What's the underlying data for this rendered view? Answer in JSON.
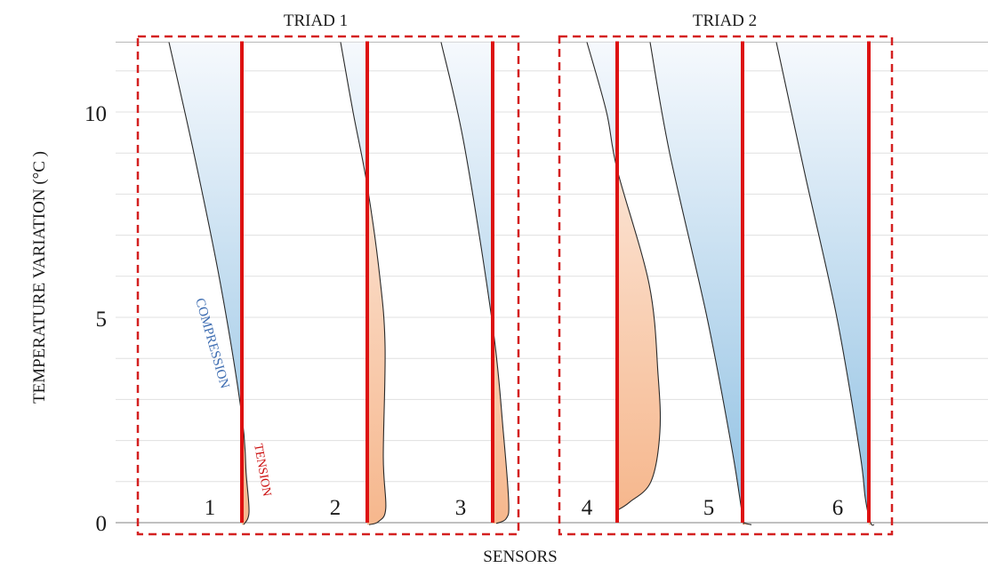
{
  "chart_data": {
    "type": "area",
    "title": "",
    "xlabel": "SENSORS",
    "ylabel": "TEMPERATURE VARIATION  (°C )",
    "ylim": [
      0,
      11.7
    ],
    "yticks": [
      0,
      5,
      10
    ],
    "grid": true,
    "groups": [
      {
        "label": "TRIAD 1",
        "sensors": [
          "1",
          "2",
          "3"
        ]
      },
      {
        "label": "TRIAD 2",
        "sensors": [
          "4",
          "5",
          "6"
        ]
      }
    ],
    "annotations": {
      "compression": "COMPRESSION",
      "tension": "TENSION"
    },
    "colors": {
      "sensor_line": "#dd1111",
      "compression": "#8fc0e2",
      "tension": "#f6b78d",
      "triad_box": "#d42020",
      "grid": "#e0e0e0"
    },
    "sensors": [
      {
        "name": "1",
        "profile": [
          [
            -2.05,
            11.7
          ],
          [
            -1.35,
            9.0
          ],
          [
            -0.6,
            5.8
          ],
          [
            0,
            2.6
          ],
          [
            0.12,
            1.2
          ],
          [
            0.2,
            0.25
          ],
          [
            0.05,
            -0.05
          ]
        ]
      },
      {
        "name": "2",
        "profile": [
          [
            -0.75,
            11.7
          ],
          [
            -0.4,
            10.0
          ],
          [
            0,
            8.2
          ],
          [
            0.35,
            6.0
          ],
          [
            0.5,
            4.3
          ],
          [
            0.45,
            1.6
          ],
          [
            0.52,
            0.35
          ],
          [
            0.32,
            0.03
          ],
          [
            0.05,
            -0.05
          ]
        ]
      },
      {
        "name": "3",
        "profile": [
          [
            -1.45,
            11.7
          ],
          [
            -0.8,
            9.2
          ],
          [
            0,
            4.8
          ],
          [
            0.3,
            2.2
          ],
          [
            0.45,
            0.5
          ],
          [
            0.38,
            0.1
          ],
          [
            0.1,
            -0.02
          ]
        ]
      },
      {
        "name": "4",
        "profile": [
          [
            -0.85,
            11.7
          ],
          [
            -0.3,
            10.0
          ],
          [
            0,
            8.6
          ],
          [
            0.9,
            5.8
          ],
          [
            1.15,
            3.6
          ],
          [
            1.2,
            2.2
          ],
          [
            0.95,
            1.0
          ],
          [
            0.35,
            0.5
          ],
          [
            0,
            0.3
          ]
        ]
      },
      {
        "name": "5",
        "profile": [
          [
            -2.6,
            11.7
          ],
          [
            -2.05,
            9.0
          ],
          [
            -1.0,
            5.0
          ],
          [
            -0.3,
            1.8
          ],
          [
            0,
            0.15
          ],
          [
            0.05,
            0.0
          ],
          [
            0.25,
            -0.05
          ]
        ]
      },
      {
        "name": "6",
        "profile": [
          [
            -2.6,
            11.7
          ],
          [
            -1.8,
            8.5
          ],
          [
            -0.9,
            5.0
          ],
          [
            -0.25,
            1.7
          ],
          [
            -0.1,
            0.6
          ],
          [
            0.05,
            0.0
          ],
          [
            0.15,
            -0.05
          ]
        ]
      }
    ]
  }
}
